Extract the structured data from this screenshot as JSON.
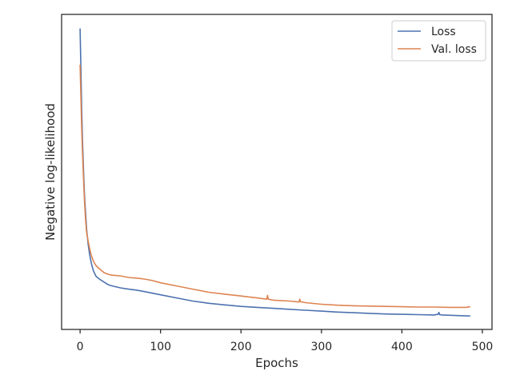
{
  "chart_data": {
    "type": "line",
    "xlabel": "Epochs",
    "ylabel": "Negative log-likelihood",
    "xlim": [
      -23,
      512
    ],
    "ylim": [
      0,
      1
    ],
    "x_ticks": [
      0,
      100,
      200,
      300,
      400,
      500
    ],
    "grid": false,
    "legend": "top-right",
    "series": [
      {
        "name": "Loss",
        "color": "#4c72b0",
        "x": [
          0,
          1,
          2,
          3,
          4,
          5,
          6,
          7,
          8,
          10,
          12,
          14,
          16,
          18,
          20,
          25,
          30,
          35,
          40,
          50,
          60,
          70,
          80,
          90,
          100,
          120,
          140,
          160,
          180,
          200,
          220,
          240,
          260,
          280,
          300,
          320,
          340,
          360,
          380,
          400,
          420,
          440,
          445,
          446,
          447,
          450,
          460,
          470,
          480,
          485
        ],
        "y": [
          0.955,
          0.83,
          0.7,
          0.6,
          0.52,
          0.45,
          0.4,
          0.36,
          0.32,
          0.27,
          0.235,
          0.21,
          0.19,
          0.178,
          0.168,
          0.158,
          0.15,
          0.142,
          0.138,
          0.132,
          0.128,
          0.125,
          0.12,
          0.115,
          0.11,
          0.1,
          0.09,
          0.083,
          0.078,
          0.073,
          0.07,
          0.067,
          0.064,
          0.061,
          0.058,
          0.055,
          0.053,
          0.051,
          0.049,
          0.048,
          0.047,
          0.046,
          0.048,
          0.054,
          0.047,
          0.046,
          0.045,
          0.044,
          0.043,
          0.043
        ]
      },
      {
        "name": "Val. loss",
        "color": "#dd8452",
        "x": [
          0,
          1,
          2,
          3,
          4,
          5,
          6,
          7,
          8,
          10,
          12,
          14,
          16,
          18,
          20,
          25,
          30,
          35,
          40,
          50,
          60,
          70,
          80,
          90,
          100,
          120,
          140,
          160,
          180,
          200,
          220,
          232,
          233,
          234,
          240,
          260,
          272,
          273,
          274,
          280,
          300,
          320,
          340,
          360,
          380,
          400,
          420,
          440,
          460,
          480,
          485
        ],
        "y": [
          0.84,
          0.74,
          0.64,
          0.56,
          0.49,
          0.43,
          0.38,
          0.34,
          0.31,
          0.28,
          0.255,
          0.235,
          0.22,
          0.21,
          0.202,
          0.19,
          0.18,
          0.175,
          0.172,
          0.17,
          0.165,
          0.163,
          0.16,
          0.155,
          0.148,
          0.138,
          0.128,
          0.118,
          0.112,
          0.106,
          0.1,
          0.096,
          0.108,
          0.096,
          0.093,
          0.09,
          0.087,
          0.096,
          0.088,
          0.085,
          0.08,
          0.077,
          0.075,
          0.074,
          0.073,
          0.072,
          0.071,
          0.071,
          0.07,
          0.07,
          0.072
        ]
      }
    ]
  }
}
